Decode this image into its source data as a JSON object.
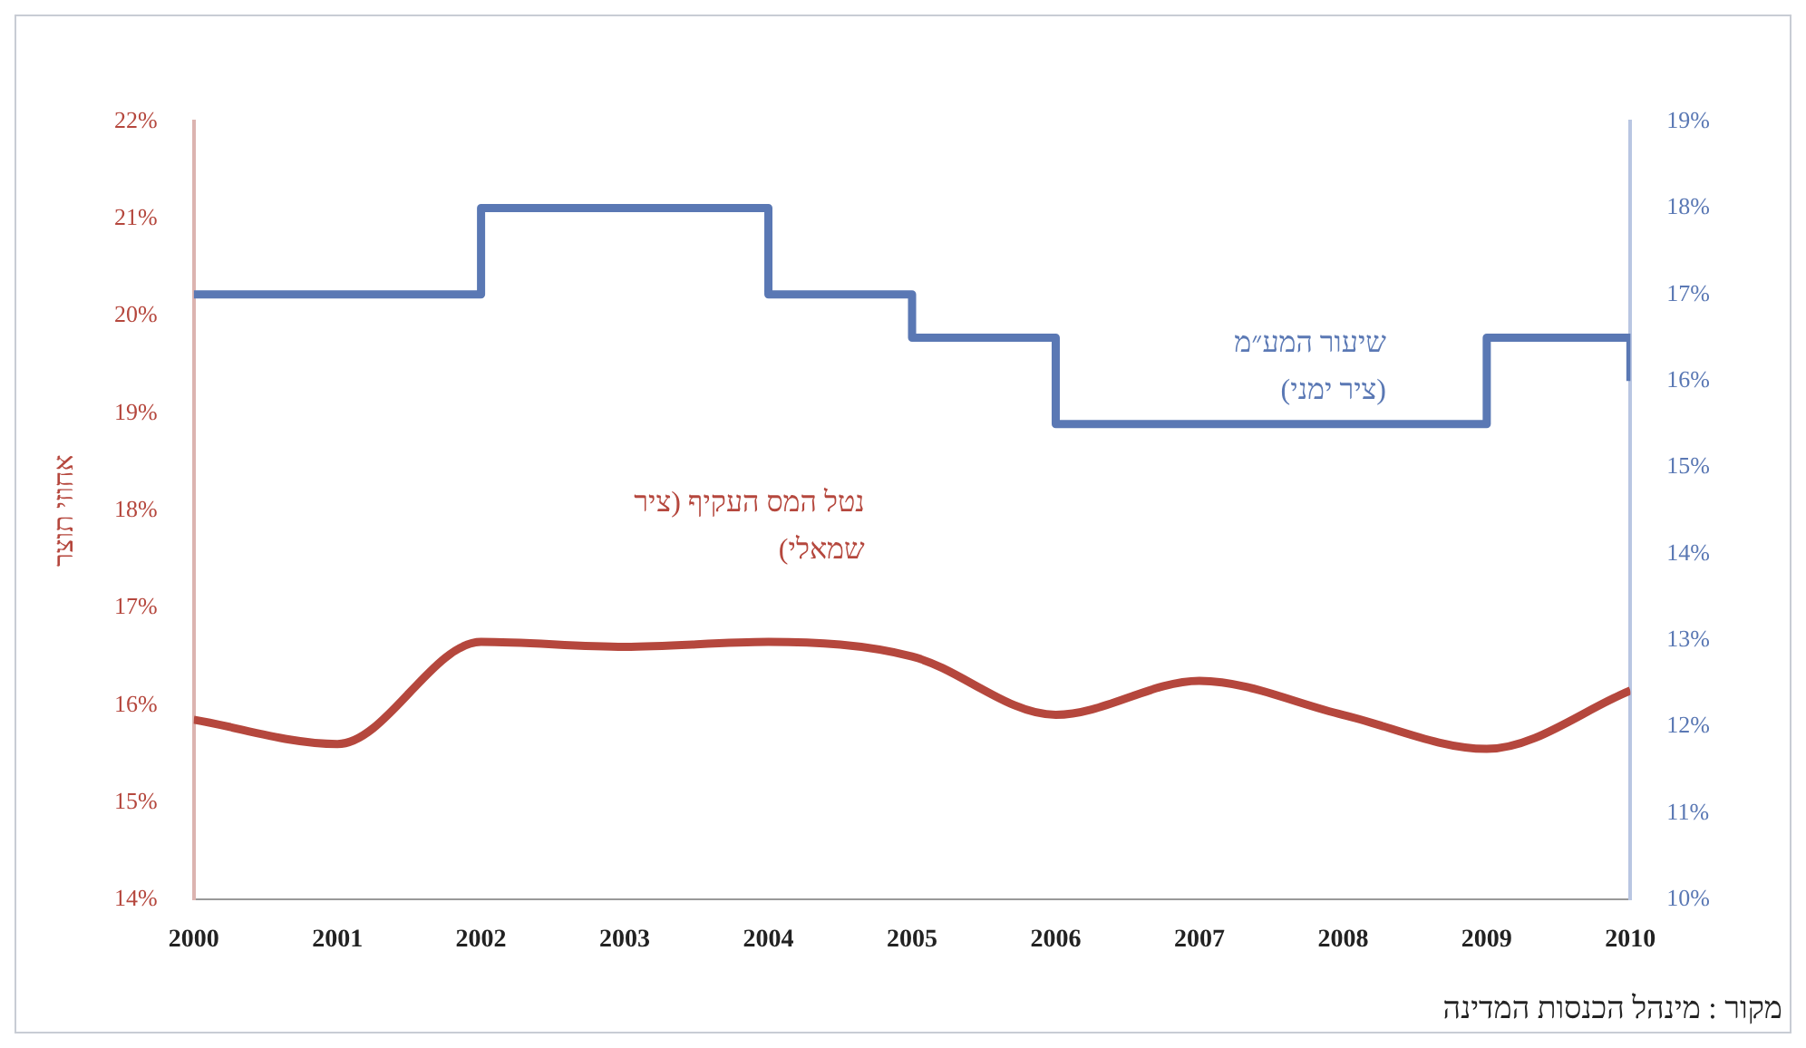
{
  "chart_data": {
    "type": "line",
    "x": [
      2000,
      2001,
      2002,
      2003,
      2004,
      2005,
      2006,
      2007,
      2008,
      2009,
      2010
    ],
    "xlim": [
      2000,
      2010
    ],
    "xticks": [
      2000,
      2001,
      2002,
      2003,
      2004,
      2005,
      2006,
      2007,
      2008,
      2009,
      2010
    ],
    "ylabel": "אחוזי תוצר",
    "ylim": [
      14,
      22
    ],
    "yticks": [
      {
        "value": 14,
        "label": "14%"
      },
      {
        "value": 15,
        "label": "15%"
      },
      {
        "value": 16,
        "label": "16%"
      },
      {
        "value": 17,
        "label": "17%"
      },
      {
        "value": 18,
        "label": "18%"
      },
      {
        "value": 19,
        "label": "19%"
      },
      {
        "value": 20,
        "label": "20%"
      },
      {
        "value": 21,
        "label": "21%"
      },
      {
        "value": 22,
        "label": "22%"
      }
    ],
    "y2lim": [
      10,
      19
    ],
    "y2ticks": [
      {
        "value": 10,
        "label": "10%"
      },
      {
        "value": 11,
        "label": "11%"
      },
      {
        "value": 12,
        "label": "12%"
      },
      {
        "value": 13,
        "label": "13%"
      },
      {
        "value": 14,
        "label": "14%"
      },
      {
        "value": 15,
        "label": "15%"
      },
      {
        "value": 16,
        "label": "16%"
      },
      {
        "value": 17,
        "label": "17%"
      },
      {
        "value": 18,
        "label": "18%"
      },
      {
        "value": 19,
        "label": "19%"
      }
    ],
    "series": [
      {
        "name": "נטל המס העקיף (ציר שמאלי)",
        "color": "#b5473d",
        "values": [
          15.85,
          15.6,
          16.65,
          16.6,
          16.65,
          16.5,
          15.9,
          16.25,
          15.9,
          15.55,
          16.15
        ]
      },
      {
        "name": "שיעור המע״מ (ציר ימני)",
        "type": "step",
        "axis": "y2",
        "color": "#5a78b4",
        "values": [
          17,
          17,
          18,
          18,
          17,
          16.5,
          15.5,
          15.5,
          15.5,
          16.5,
          16
        ]
      }
    ],
    "grid": false,
    "legend": false,
    "annotations": [
      "מקור : מינהל הכנסות המדינה"
    ]
  }
}
